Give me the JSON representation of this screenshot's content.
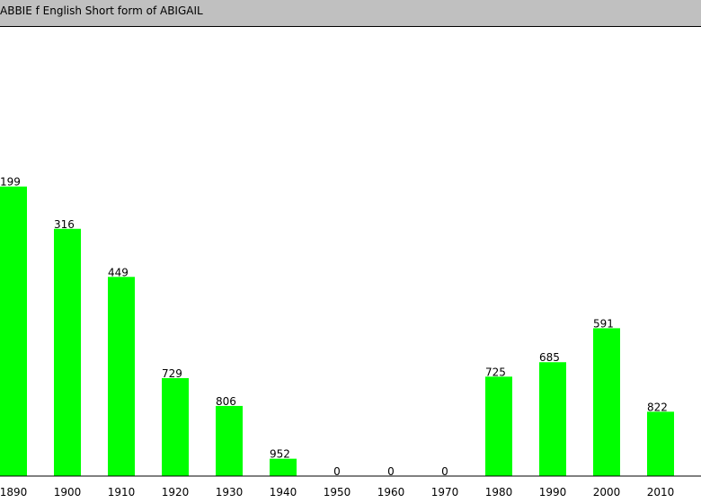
{
  "header": {
    "title": "ABBIE f English Short form of ABIGAIL"
  },
  "colors": {
    "header_bg": "#c0c0c0",
    "bar": "#00ff00",
    "text": "#000000",
    "axis": "#000000"
  },
  "chart_data": {
    "type": "bar",
    "title": "",
    "xlabel": "",
    "ylabel": "",
    "categories": [
      "1890",
      "1900",
      "1910",
      "1920",
      "1930",
      "1940",
      "1950",
      "1960",
      "1970",
      "1980",
      "1990",
      "2000",
      "2010"
    ],
    "values": [
      199,
      316,
      449,
      729,
      806,
      952,
      0,
      0,
      0,
      725,
      685,
      591,
      822
    ],
    "value_labels": [
      "199",
      "316",
      "449",
      "729",
      "806",
      "952",
      "0",
      "0",
      "0",
      "725",
      "685",
      "591",
      "822"
    ],
    "scale": "rank",
    "rank_range": [
      1,
      1000
    ],
    "grid": false,
    "legend": "none"
  }
}
